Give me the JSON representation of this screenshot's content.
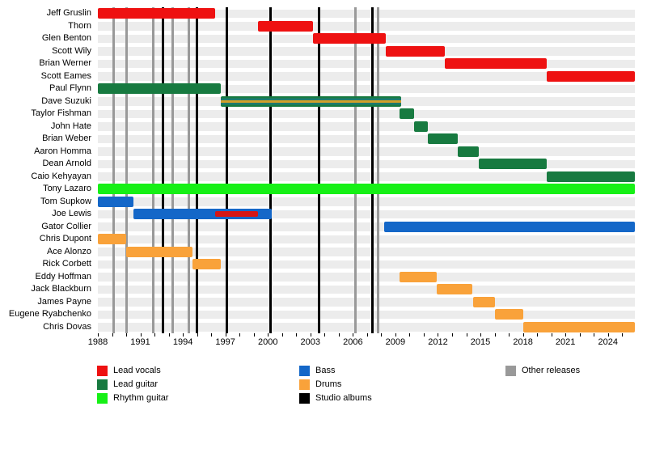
{
  "chart_data": {
    "type": "bar",
    "subtype": "band-member-timeline-gantt",
    "title": "",
    "x_axis": {
      "min": 1988,
      "max": 2025.9,
      "tick_every_years": 1,
      "label_years": [
        1988,
        1991,
        1994,
        1997,
        2000,
        2003,
        2006,
        2009,
        2012,
        2015,
        2018,
        2021,
        2024
      ]
    },
    "roles": {
      "lead_vocals": {
        "label": "Lead vocals",
        "color": "#ee1111"
      },
      "lead_guitar": {
        "label": "Lead guitar",
        "color": "#177a40"
      },
      "rhythm_guitar": {
        "label": "Rhythm guitar",
        "color": "#16f016"
      },
      "bass": {
        "label": "Bass",
        "color": "#1467c8"
      },
      "drums": {
        "label": "Drums",
        "color": "#f9a23a"
      },
      "studio_albums": {
        "label": "Studio albums",
        "color": "#000000"
      },
      "other_releases": {
        "label": "Other releases",
        "color": "#999999"
      }
    },
    "members": [
      {
        "name": "Jeff Gruslin",
        "bars": [
          {
            "role": "lead_vocals",
            "start": 1988,
            "end": 1996.3
          }
        ]
      },
      {
        "name": "Thorn",
        "bars": [
          {
            "role": "lead_vocals",
            "start": 1999.3,
            "end": 2003.2
          }
        ]
      },
      {
        "name": "Glen Benton",
        "bars": [
          {
            "role": "lead_vocals",
            "start": 2003.2,
            "end": 2008.3
          }
        ]
      },
      {
        "name": "Scott Wily",
        "bars": [
          {
            "role": "lead_vocals",
            "start": 2008.3,
            "end": 2012.5
          }
        ]
      },
      {
        "name": "Brian Werner",
        "bars": [
          {
            "role": "lead_vocals",
            "start": 2012.5,
            "end": 2019.7
          }
        ]
      },
      {
        "name": "Scott Eames",
        "bars": [
          {
            "role": "lead_vocals",
            "start": 2019.7,
            "end": 2025.9
          }
        ]
      },
      {
        "name": "Paul Flynn",
        "bars": [
          {
            "role": "lead_guitar",
            "start": 1988,
            "end": 1996.7
          }
        ]
      },
      {
        "name": "Dave Suzuki",
        "bars": [
          {
            "role": "lead_guitar",
            "start": 1996.7,
            "end": 2009.4,
            "stripes": [
              "#177a40",
              "#1d7a70",
              "#d2a02a",
              "#1d7a70",
              "#177a40"
            ],
            "roles_note": "lead guitar + bass + drums"
          }
        ]
      },
      {
        "name": "Taylor Fishman",
        "bars": [
          {
            "role": "lead_guitar",
            "start": 2009.3,
            "end": 2010.3
          }
        ]
      },
      {
        "name": "John Hate",
        "bars": [
          {
            "role": "lead_guitar",
            "start": 2010.3,
            "end": 2011.3
          }
        ]
      },
      {
        "name": "Brian Weber",
        "bars": [
          {
            "role": "lead_guitar",
            "start": 2011.3,
            "end": 2013.4
          }
        ]
      },
      {
        "name": "Aaron Homma",
        "bars": [
          {
            "role": "lead_guitar",
            "start": 2013.4,
            "end": 2014.9
          }
        ]
      },
      {
        "name": "Dean Arnold",
        "bars": [
          {
            "role": "lead_guitar",
            "start": 2014.9,
            "end": 2019.7
          }
        ]
      },
      {
        "name": "Caio Kehyayan",
        "bars": [
          {
            "role": "lead_guitar",
            "start": 2019.7,
            "end": 2025.9
          }
        ]
      },
      {
        "name": "Tony Lazaro",
        "bars": [
          {
            "role": "rhythm_guitar",
            "start": 1988,
            "end": 2025.9
          }
        ]
      },
      {
        "name": "Tom Supkow",
        "bars": [
          {
            "role": "bass",
            "start": 1988,
            "end": 1990.5
          }
        ]
      },
      {
        "name": "Joe Lewis",
        "bars": [
          {
            "role": "bass",
            "start": 1990.5,
            "end": 2000.3,
            "overlay": {
              "role": "lead_vocals",
              "color": "#d41616",
              "start": 1996.3,
              "end": 1999.3
            }
          }
        ]
      },
      {
        "name": "Gator Collier",
        "bars": [
          {
            "role": "bass",
            "start": 2008.2,
            "end": 2025.9
          }
        ]
      },
      {
        "name": "Chris Dupont",
        "bars": [
          {
            "role": "drums",
            "start": 1988,
            "end": 1990.0
          }
        ]
      },
      {
        "name": "Ace Alonzo",
        "bars": [
          {
            "role": "drums",
            "start": 1990.0,
            "end": 1994.7
          }
        ]
      },
      {
        "name": "Rick Corbett",
        "bars": [
          {
            "role": "drums",
            "start": 1994.7,
            "end": 1996.7
          }
        ]
      },
      {
        "name": "Eddy Hoffman",
        "bars": [
          {
            "role": "drums",
            "start": 2009.3,
            "end": 2011.9
          }
        ]
      },
      {
        "name": "Jack Blackburn",
        "bars": [
          {
            "role": "drums",
            "start": 2011.9,
            "end": 2014.4
          }
        ]
      },
      {
        "name": "James Payne",
        "bars": [
          {
            "role": "drums",
            "start": 2014.5,
            "end": 2016.0
          }
        ]
      },
      {
        "name": "Eugene Ryabchenko",
        "bars": [
          {
            "role": "drums",
            "start": 2016.0,
            "end": 2018.0
          }
        ]
      },
      {
        "name": "Chris Dovas",
        "bars": [
          {
            "role": "drums",
            "start": 2018.0,
            "end": 2025.9
          }
        ]
      }
    ],
    "event_lines": [
      {
        "type": "studio_albums",
        "years": [
          1992.6,
          1995.0,
          1997.1,
          2000.2,
          2003.6,
          2007.4
        ]
      },
      {
        "type": "other_releases",
        "years": [
          1989.1,
          1990.0,
          1991.9,
          1993.3,
          1994.4,
          2006.2,
          2007.75
        ]
      }
    ],
    "legend": {
      "columns": [
        [
          "lead_vocals",
          "lead_guitar",
          "rhythm_guitar"
        ],
        [
          "bass",
          "drums",
          "studio_albums"
        ],
        [
          "other_releases"
        ]
      ]
    }
  }
}
